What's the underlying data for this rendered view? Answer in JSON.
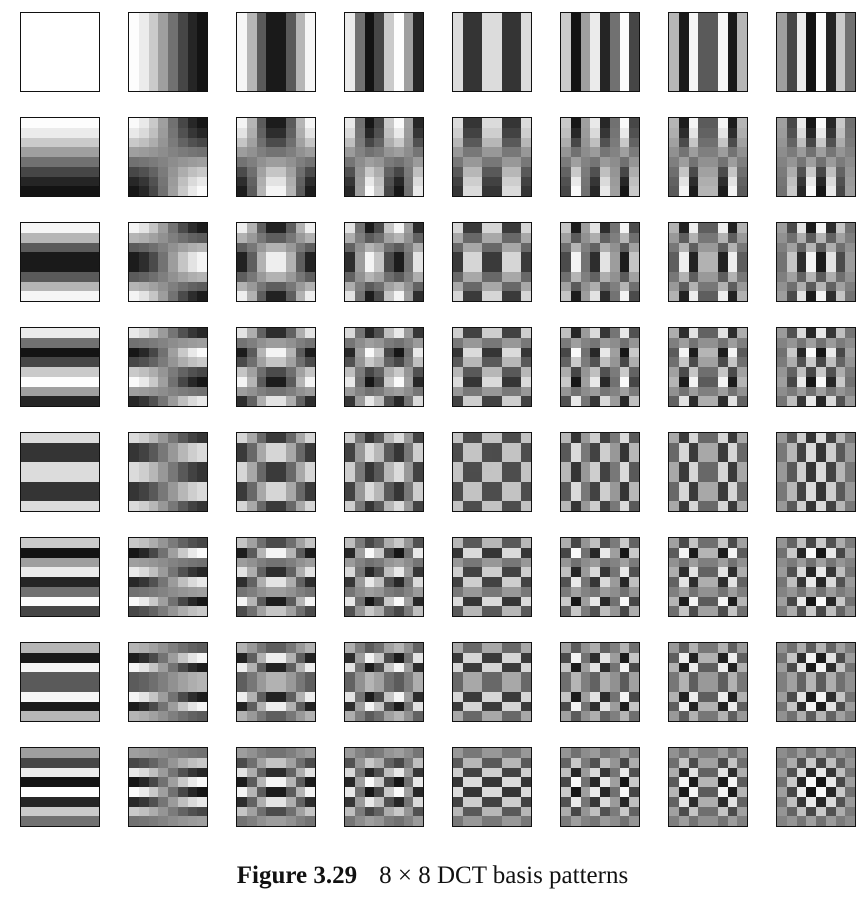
{
  "figure": {
    "label": "Figure 3.29",
    "caption": "8 × 8 DCT basis patterns",
    "grid_size": 8,
    "block_size": 8,
    "colors": {
      "low": "#111111",
      "high": "#ffffff",
      "border": "#111111"
    }
  }
}
